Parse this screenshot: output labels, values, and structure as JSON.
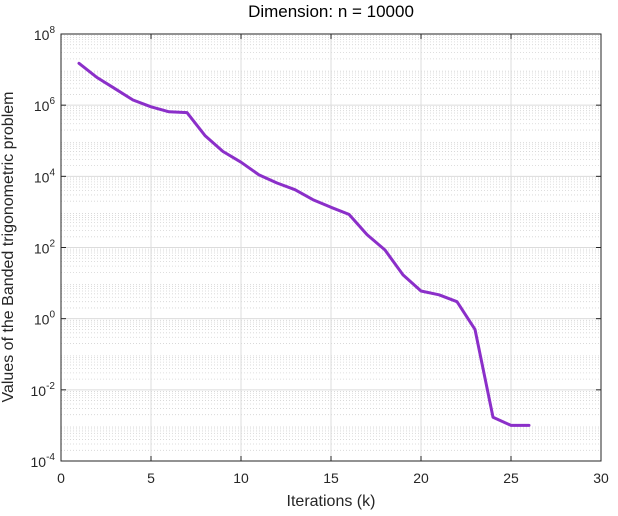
{
  "chart_data": {
    "type": "line",
    "title": "Dimension: n = 10000",
    "xlabel": "Iterations (k)",
    "ylabel": "Values of the Banded trigonometric problem",
    "xlim": [
      0,
      30
    ],
    "ylim": [
      0.0001,
      100000000
    ],
    "yscale": "log",
    "grid": true,
    "minor_grid": true,
    "x_ticks": [
      0,
      5,
      10,
      15,
      20,
      25,
      30
    ],
    "y_ticks": [
      {
        "value": 0.0001,
        "base": "10",
        "exp": "-4"
      },
      {
        "value": 0.01,
        "base": "10",
        "exp": "-2"
      },
      {
        "value": 1,
        "base": "10",
        "exp": "0"
      },
      {
        "value": 100,
        "base": "10",
        "exp": "2"
      },
      {
        "value": 10000,
        "base": "10",
        "exp": "4"
      },
      {
        "value": 1000000,
        "base": "10",
        "exp": "6"
      },
      {
        "value": 100000000,
        "base": "10",
        "exp": "8"
      }
    ],
    "series": [
      {
        "color": "#8b2fc9",
        "x": [
          1,
          2,
          3,
          4,
          5,
          6,
          7,
          8,
          9,
          10,
          11,
          12,
          13,
          14,
          15,
          16,
          17,
          18,
          19,
          20,
          21,
          22,
          23,
          24,
          25,
          26
        ],
        "y": [
          15000000,
          6000000,
          2900000,
          1400000,
          900000,
          650000,
          620000,
          140000,
          50000,
          25000,
          11000,
          6500,
          4200,
          2200,
          1350,
          850,
          230,
          85,
          17,
          6,
          4.7,
          3,
          0.5,
          0.0017,
          0.001,
          0.001
        ]
      }
    ]
  }
}
